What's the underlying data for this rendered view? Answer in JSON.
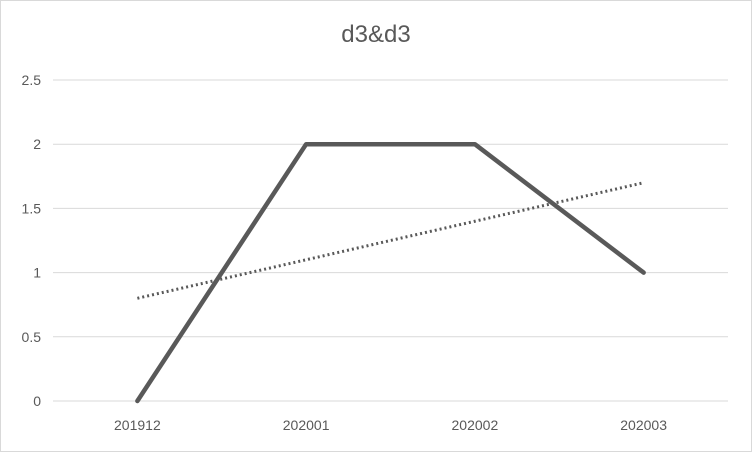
{
  "chart_data": {
    "type": "line",
    "title": "d3&d3",
    "categories": [
      "201912",
      "202001",
      "202002",
      "202003"
    ],
    "series": [
      {
        "values": [
          0,
          2,
          2,
          1
        ],
        "color": "#595959"
      }
    ],
    "trendline": {
      "kind": "linear",
      "values": [
        0.8,
        1.1,
        1.4,
        1.7
      ],
      "style": "dotted",
      "color": "#595959"
    },
    "y_ticks": [
      "0",
      "0.5",
      "1",
      "1.5",
      "2",
      "2.5"
    ],
    "ylim": [
      0,
      2.5
    ],
    "grid": true,
    "legend": "none"
  }
}
